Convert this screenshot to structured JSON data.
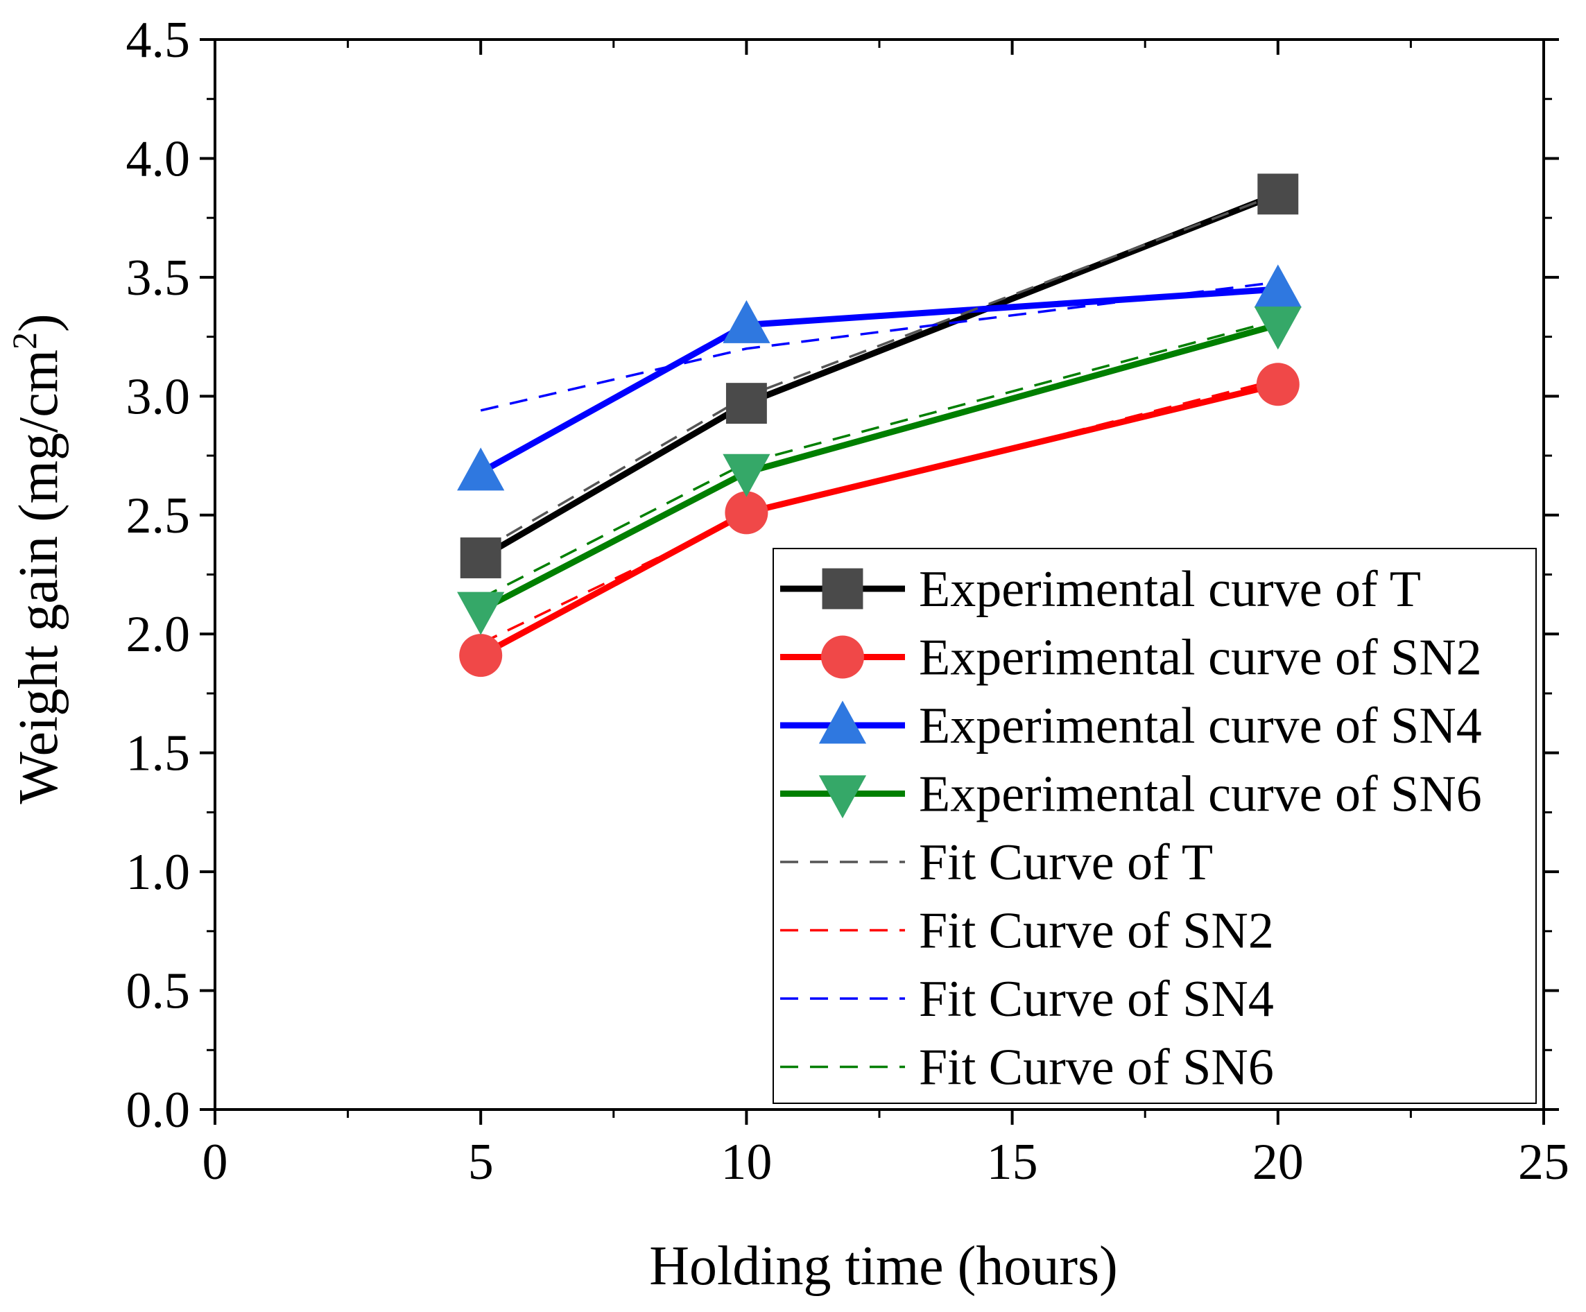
{
  "chart_data": {
    "type": "line",
    "title": "",
    "xlabel": "Holding time (hours)",
    "ylabel_main": "Weight gain (mg/cm",
    "ylabel_sup": "2",
    "ylabel_end": ")",
    "xlim": [
      0,
      25
    ],
    "ylim": [
      0.0,
      4.5
    ],
    "x_ticks": [
      0,
      5,
      10,
      15,
      20,
      25
    ],
    "x_tick_labels": [
      "0",
      "5",
      "10",
      "15",
      "20",
      "25"
    ],
    "y_ticks": [
      0.0,
      0.5,
      1.0,
      1.5,
      2.0,
      2.5,
      3.0,
      3.5,
      4.0,
      4.5
    ],
    "y_tick_labels": [
      "0.0",
      "0.5",
      "1.0",
      "1.5",
      "2.0",
      "2.5",
      "3.0",
      "3.5",
      "4.0",
      "4.5"
    ],
    "grid": false,
    "legend_position": "bottom-right",
    "series": [
      {
        "name": "Experimental curve of T",
        "kind": "experimental",
        "marker": "square",
        "line_color": "#000000",
        "marker_color": "#4a4a4a",
        "x": [
          5,
          10,
          20
        ],
        "values": [
          2.32,
          2.97,
          3.85
        ]
      },
      {
        "name": "Experimental curve of SN2",
        "kind": "experimental",
        "marker": "circle",
        "line_color": "#ff0000",
        "marker_color": "#f04848",
        "x": [
          5,
          10,
          20
        ],
        "values": [
          1.91,
          2.51,
          3.05
        ]
      },
      {
        "name": "Experimental curve of SN4",
        "kind": "experimental",
        "marker": "triangle-up",
        "line_color": "#0000ff",
        "marker_color": "#2f78e0",
        "x": [
          5,
          10,
          20
        ],
        "values": [
          2.68,
          3.3,
          3.45
        ]
      },
      {
        "name": "Experimental curve of SN6",
        "kind": "experimental",
        "marker": "triangle-down",
        "line_color": "#007f00",
        "marker_color": "#35a868",
        "x": [
          5,
          10,
          20
        ],
        "values": [
          2.1,
          2.68,
          3.3
        ]
      },
      {
        "name": "Fit Curve of T",
        "kind": "fit",
        "marker": "none",
        "line_color": "#555555",
        "x": [
          5,
          10,
          20
        ],
        "values": [
          2.35,
          3.0,
          3.85
        ]
      },
      {
        "name": "Fit Curve of SN2",
        "kind": "fit",
        "marker": "none",
        "line_color": "#ff0000",
        "x": [
          5,
          10,
          20
        ],
        "values": [
          1.96,
          2.5,
          3.07
        ]
      },
      {
        "name": "Fit Curve of SN4",
        "kind": "fit",
        "marker": "none",
        "line_color": "#0000ff",
        "x": [
          5,
          10,
          20
        ],
        "values": [
          2.94,
          3.2,
          3.48
        ]
      },
      {
        "name": "Fit Curve of SN6",
        "kind": "fit",
        "marker": "none",
        "line_color": "#007f00",
        "x": [
          5,
          10,
          20
        ],
        "values": [
          2.15,
          2.72,
          3.32
        ]
      }
    ]
  }
}
